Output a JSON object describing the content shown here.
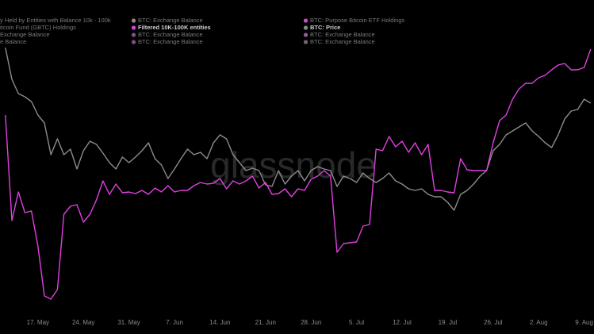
{
  "chart_data": {
    "type": "line",
    "watermark": "glassnode",
    "legend": [
      {
        "name": "y Held by Entities with Balance 10k - 100k"
      },
      {
        "name": "BTC: Exchange Balance",
        "color": "#8a8a8a"
      },
      {
        "name": "BTC: Purpose Bitcoin ETF Holdings",
        "color": "#c84fc8"
      },
      {
        "name": "itcoin Fund (GBTC) Holdings"
      },
      {
        "name": "Filtered 10K-100K entities",
        "color": "#e040e0",
        "strong": true
      },
      {
        "name": "BTC: Price",
        "color": "#8a8a8a",
        "strong": true
      },
      {
        "name": "Exchange Balance"
      },
      {
        "name": "BTC: Exchange Balance",
        "color": "#7a5a7a"
      },
      {
        "name": "BTC: Exchange Balance",
        "color": "#9a5a9a"
      },
      {
        "name": "e Balance"
      },
      {
        "name": "BTC: Exchange Balance",
        "color": "#8a4a8a"
      },
      {
        "name": "BTC: Exchange Balance",
        "color": "#6a6a6a"
      }
    ],
    "categories": [
      null,
      null,
      null,
      null,
      null,
      "17. May",
      null,
      null,
      null,
      null,
      null,
      null,
      "24. May",
      null,
      null,
      null,
      null,
      null,
      null,
      "31. May",
      null,
      null,
      null,
      null,
      null,
      null,
      "7. Jun",
      null,
      null,
      null,
      null,
      null,
      null,
      "14. Jun",
      null,
      null,
      null,
      null,
      null,
      null,
      "21. Jun",
      null,
      null,
      null,
      null,
      null,
      null,
      "28. Jun",
      null,
      null,
      null,
      null,
      null,
      null,
      "5. Jul",
      null,
      null,
      null,
      null,
      null,
      null,
      "12. Jul",
      null,
      null,
      null,
      null,
      null,
      null,
      "19. Jul",
      null,
      null,
      null,
      null,
      null,
      null,
      "26. Jul",
      null,
      null,
      null,
      null,
      null,
      null,
      "2. Aug",
      null,
      null,
      null,
      null,
      null,
      null,
      "9. Aug",
      null
    ],
    "ylim": [
      0,
      400
    ],
    "series": [
      {
        "name": "BTC: Price",
        "color": "#8c8c8c",
        "values": [
          340,
          300,
          282,
          278,
          272,
          255,
          245,
          205,
          225,
          205,
          212,
          187,
          210,
          222,
          218,
          207,
          195,
          187,
          202,
          195,
          202,
          210,
          220,
          200,
          192,
          175,
          187,
          200,
          212,
          205,
          208,
          200,
          220,
          230,
          225,
          205,
          195,
          185,
          188,
          185,
          167,
          165,
          185,
          168,
          178,
          185,
          172,
          185,
          190,
          187,
          185,
          165,
          178,
          175,
          170,
          182,
          175,
          170,
          175,
          182,
          172,
          168,
          162,
          160,
          162,
          155,
          152,
          152,
          145,
          135,
          155,
          160,
          168,
          178,
          185,
          210,
          218,
          230,
          235,
          240,
          245,
          235,
          228,
          220,
          214,
          230,
          250,
          260,
          262,
          275,
          270
        ]
      },
      {
        "name": "Filtered 10K-100K entities",
        "color": "#e040e0",
        "values": [
          255,
          122,
          158,
          132,
          134,
          90,
          27,
          23,
          35,
          130,
          140,
          142,
          120,
          130,
          148,
          172,
          155,
          168,
          157,
          158,
          156,
          160,
          155,
          163,
          158,
          166,
          158,
          160,
          160,
          166,
          170,
          168,
          169,
          175,
          162,
          172,
          168,
          172,
          178,
          163,
          170,
          155,
          156,
          162,
          152,
          162,
          160,
          174,
          178,
          185,
          178,
          82,
          93,
          94,
          95,
          115,
          117,
          212,
          210,
          228,
          215,
          222,
          208,
          220,
          205,
          218,
          160,
          160,
          158,
          157,
          200,
          186,
          185,
          185,
          185,
          220,
          248,
          255,
          275,
          288,
          295,
          295,
          302,
          305,
          312,
          318,
          320,
          312,
          312,
          315,
          338
        ]
      }
    ]
  }
}
